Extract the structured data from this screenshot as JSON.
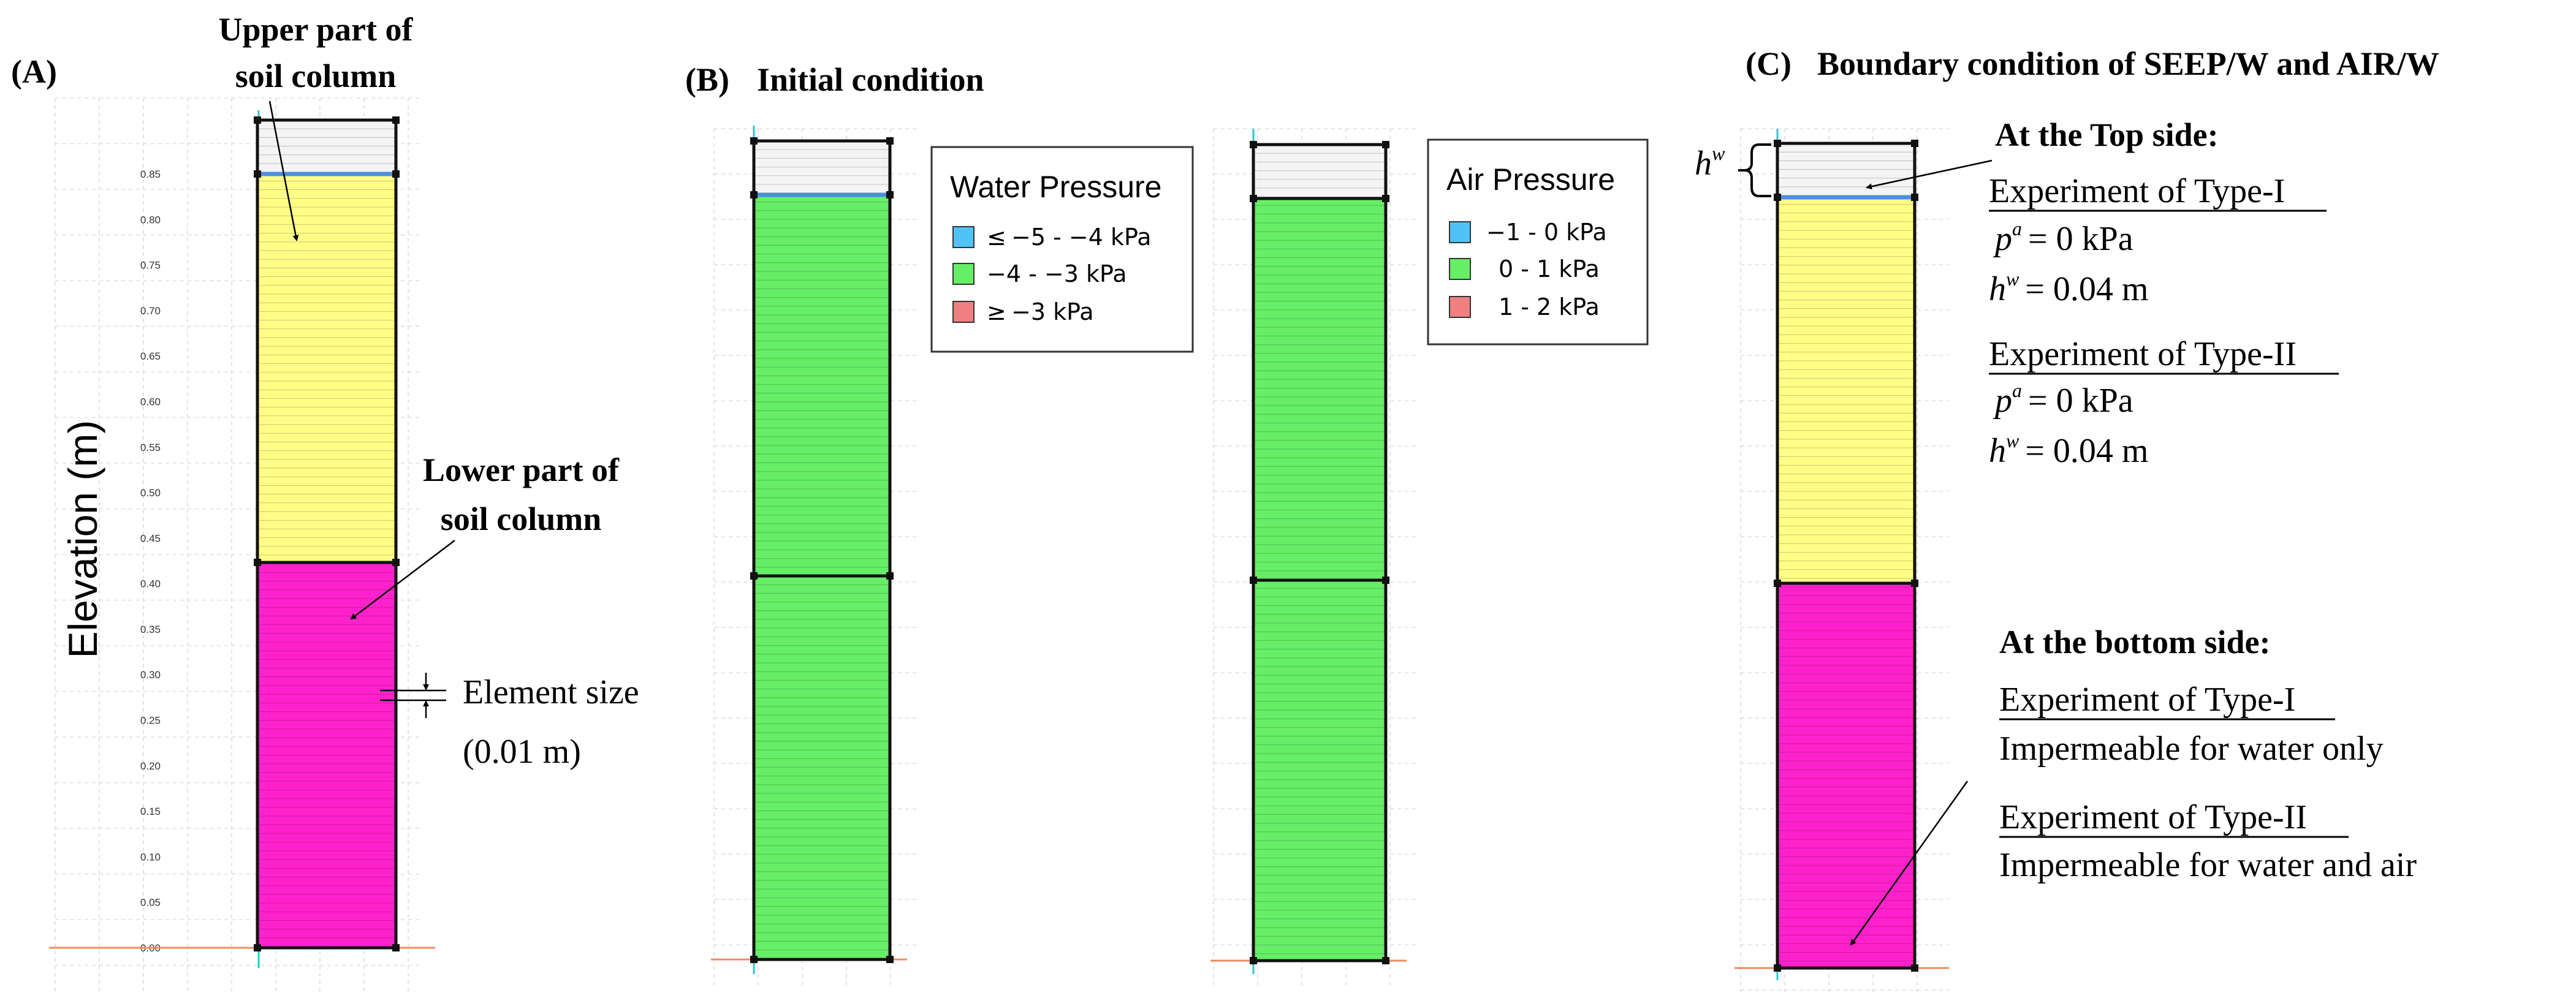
{
  "panel_a": {
    "label": "(A)",
    "y_axis_label": "Elevation (m)",
    "ticks": [
      "0.00",
      "0.05",
      "0.10",
      "0.15",
      "0.20",
      "0.25",
      "0.30",
      "0.35",
      "0.40",
      "0.45",
      "0.50",
      "0.55",
      "0.60",
      "0.65",
      "0.70",
      "0.75",
      "0.80",
      "0.85"
    ],
    "annotation_upper_line1": "Upper part of",
    "annotation_upper_line2": "soil column",
    "annotation_lower_line1": "Lower part of",
    "annotation_lower_line2": "soil column",
    "element_size_label": "Element size",
    "element_size_value": "(0.01 m)"
  },
  "panel_b": {
    "label": "(B)",
    "title": "Initial condition",
    "water_legend": {
      "title": "Water Pressure",
      "items": [
        {
          "symbol": "≤",
          "text": "−5 - −4 kPa",
          "color": "#4fc3f7"
        },
        {
          "symbol": "",
          "text": "−4 - −3 kPa",
          "color": "#66ee66"
        },
        {
          "symbol": "≥",
          "text": "−3 kPa",
          "color": "#f08080"
        }
      ]
    },
    "air_legend": {
      "title": "Air Pressure",
      "items": [
        {
          "text": "−1 - 0 kPa",
          "color": "#4fc3f7"
        },
        {
          "text": "0 - 1 kPa",
          "color": "#66ee66"
        },
        {
          "text": "1 - 2 kPa",
          "color": "#f08080"
        }
      ]
    }
  },
  "panel_c": {
    "label": "(C)",
    "title": "Boundary condition of SEEP/W and AIR/W",
    "hw_symbol": "h",
    "hw_superscript": "w",
    "top_header": "At the Top side:",
    "top_type1_title": "Experiment of Type-I",
    "top_type1_pa": "= 0 kPa",
    "top_type1_hw": "= 0.04 m",
    "top_type2_title": "Experiment of Type-II",
    "top_type2_pa": "= 0 kPa",
    "top_type2_hw": "= 0.04 m",
    "p_symbol": "p",
    "p_superscript": "a",
    "bottom_header": "At the bottom side:",
    "bottom_type1_title": "Experiment of Type-I",
    "bottom_type1_text": "Impermeable for water only",
    "bottom_type2_title": "Experiment of Type-II",
    "bottom_type2_text": "Impermeable for water and air"
  },
  "colors": {
    "upper_soil": "#ffff88",
    "lower_soil": "#ff22cc",
    "initial_green": "#66ee66",
    "water_line": "#4a8fe0",
    "water_blue": "#4fc3f7",
    "pressure_red": "#f08080",
    "ponding": "#f4f4f4"
  }
}
